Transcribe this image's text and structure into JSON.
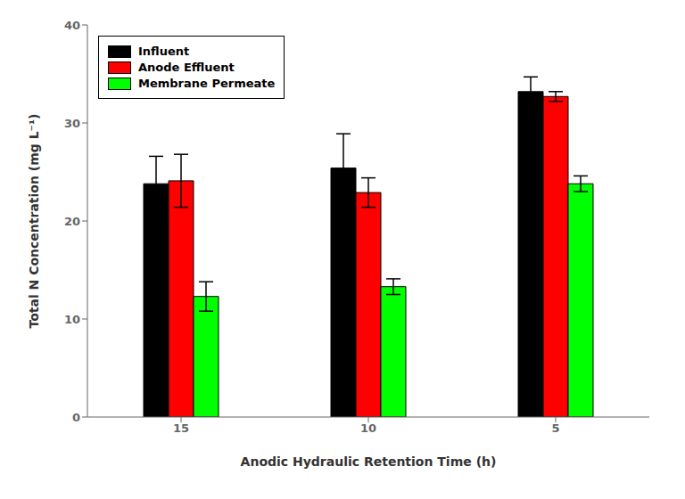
{
  "chart_data": {
    "type": "bar",
    "xlabel": "Anodic Hydraulic Retention Time (h)",
    "ylabel": "Total N Concentration (mg L⁻¹)",
    "categories": [
      "15",
      "10",
      "5"
    ],
    "series": [
      {
        "name": "Influent",
        "color": "#000000",
        "values": [
          23.8,
          25.4,
          33.2
        ],
        "errors": [
          2.8,
          3.5,
          1.5
        ]
      },
      {
        "name": "Anode Effluent",
        "color": "#ff0000",
        "values": [
          24.1,
          22.9,
          32.7
        ],
        "errors": [
          2.7,
          1.5,
          0.5
        ]
      },
      {
        "name": "Membrane Permeate",
        "color": "#00ff00",
        "values": [
          12.3,
          13.3,
          23.8
        ],
        "errors": [
          1.5,
          0.8,
          0.8
        ]
      }
    ],
    "ylim": [
      0,
      40
    ],
    "yticks": [
      0,
      10,
      20,
      30,
      40
    ],
    "grid": false,
    "legend": "upper left"
  }
}
